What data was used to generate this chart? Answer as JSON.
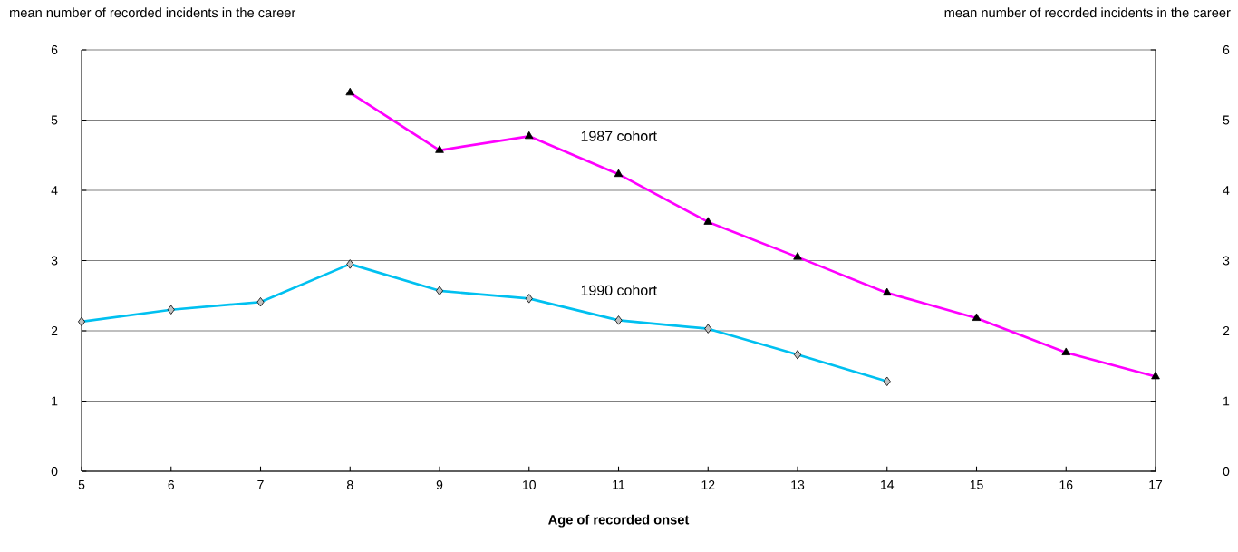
{
  "chart_data": {
    "type": "line",
    "xlabel": "Age of recorded onset",
    "ylabel": "mean number of recorded incidents in the career",
    "y2label": "mean number of recorded incidents in the career",
    "xlim": [
      5,
      17
    ],
    "xticks": [
      5,
      6,
      7,
      8,
      9,
      10,
      11,
      12,
      13,
      14,
      15,
      16,
      17
    ],
    "ylim": [
      0,
      6
    ],
    "yticks": [
      0,
      1,
      2,
      3,
      4,
      5,
      6
    ],
    "y2lim": [
      0,
      6
    ],
    "y2ticks": [
      0,
      1,
      2,
      3,
      4,
      5,
      6
    ],
    "grid": "y",
    "legend": false,
    "line_style": "solid",
    "series": [
      {
        "name": "1987 cohort",
        "color": "#ff00ff",
        "marker": "triangle",
        "x": [
          8,
          9,
          10,
          11,
          12,
          13,
          14,
          15,
          16,
          17
        ],
        "values": [
          5.39,
          4.57,
          4.77,
          4.23,
          3.55,
          3.05,
          2.54,
          2.18,
          1.69,
          1.35
        ]
      },
      {
        "name": "1990 cohort",
        "color": "#00c0f0",
        "marker": "diamond",
        "x": [
          5,
          6,
          7,
          8,
          9,
          10,
          11,
          12,
          13,
          14
        ],
        "values": [
          2.13,
          2.3,
          2.41,
          2.95,
          2.57,
          2.46,
          2.15,
          2.03,
          1.66,
          1.28
        ]
      }
    ]
  }
}
